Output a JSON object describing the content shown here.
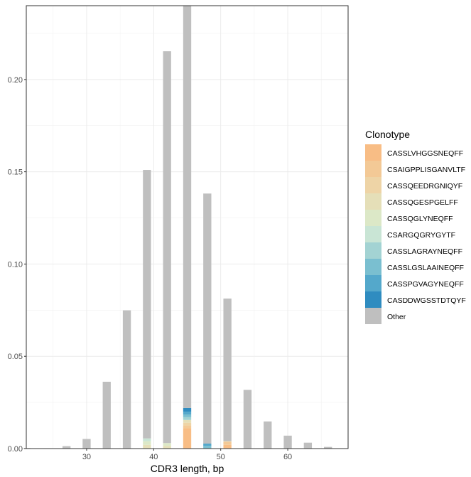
{
  "chart_data": {
    "type": "bar",
    "stacked": true,
    "xlabel": "CDR3 length, bp",
    "ylabel": "",
    "xlim": [
      21,
      69
    ],
    "ylim": [
      0,
      0.24
    ],
    "x_ticks": [
      30,
      40,
      50,
      60
    ],
    "y_ticks": [
      0.0,
      0.05,
      0.1,
      0.15,
      0.2
    ],
    "y_tick_labels": [
      "0.00",
      "0.05",
      "0.10",
      "0.15",
      "0.20"
    ],
    "grid": true,
    "legend_position": "right",
    "x": [
      21,
      24,
      27,
      30,
      33,
      36,
      39,
      42,
      45,
      48,
      51,
      54,
      57,
      60,
      63,
      66
    ],
    "series": [
      {
        "name": "CASSLVHGGSNEQFF",
        "color": "#F8BD85",
        "values": [
          0,
          0,
          0,
          0,
          0,
          0,
          0,
          0,
          0.011,
          0,
          0.002,
          0,
          0,
          0,
          0,
          0
        ]
      },
      {
        "name": "CSAIGPPLISGANVLTF",
        "color": "#F3C996",
        "values": [
          0,
          0,
          0,
          0,
          0,
          0,
          0,
          0,
          0.0015,
          0,
          0.0015,
          0,
          0,
          0,
          0,
          0
        ]
      },
      {
        "name": "CASSQEEDRGNIQYF",
        "color": "#EED4A6",
        "values": [
          0,
          0,
          0,
          0,
          0,
          0,
          0,
          0,
          0.0015,
          0,
          0.0005,
          0,
          0,
          0,
          0,
          0
        ]
      },
      {
        "name": "CASSQGESPGELFF",
        "color": "#E5DFB8",
        "values": [
          0,
          0,
          0,
          0,
          0,
          0,
          0.002,
          0.0015,
          0.0015,
          0,
          0,
          0,
          0,
          0,
          0,
          0
        ]
      },
      {
        "name": "CASSQGLYNEQFF",
        "color": "#DCE8C7",
        "values": [
          0,
          0,
          0,
          0,
          0,
          0,
          0.002,
          0.0015,
          0,
          0,
          0,
          0,
          0,
          0,
          0,
          0
        ]
      },
      {
        "name": "CSARGQGRYGYTF",
        "color": "#C9E5D5",
        "values": [
          0,
          0,
          0,
          0,
          0,
          0,
          0.0015,
          0,
          0,
          0,
          0,
          0,
          0,
          0,
          0,
          0
        ]
      },
      {
        "name": "CASSLAGRAYNEQFF",
        "color": "#A3D3D3",
        "values": [
          0,
          0,
          0,
          0,
          0,
          0,
          0,
          0,
          0.0015,
          0,
          0,
          0,
          0,
          0,
          0,
          0
        ]
      },
      {
        "name": "CASSLGSLAAINEQFF",
        "color": "#7ABFD0",
        "values": [
          0,
          0,
          0,
          0,
          0,
          0,
          0,
          0,
          0.0015,
          0.0015,
          0,
          0,
          0,
          0,
          0,
          0
        ]
      },
      {
        "name": "CASSPGVAGYNEQFF",
        "color": "#54A8CB",
        "values": [
          0,
          0,
          0,
          0,
          0,
          0,
          0,
          0,
          0.0015,
          0.0012,
          0,
          0,
          0,
          0,
          0,
          0
        ]
      },
      {
        "name": "CASDDWGSSTDTQYF",
        "color": "#2F8CC0",
        "values": [
          0,
          0,
          0,
          0,
          0,
          0,
          0,
          0,
          0.002,
          0,
          0,
          0,
          0,
          0,
          0,
          0
        ]
      },
      {
        "name": "Other",
        "color": "#BFBFBF",
        "values": [
          0.0003,
          0.0002,
          0.0013,
          0.0052,
          0.0362,
          0.0749,
          0.1455,
          0.2123,
          0.2185,
          0.1355,
          0.0773,
          0.0318,
          0.0147,
          0.007,
          0.0032,
          0.0009
        ]
      }
    ],
    "legend_title": "Clonotype",
    "colors": {
      "grid": "#EBEBEB",
      "axis_text": "#4D4D4D",
      "panel_border": "#333333"
    }
  }
}
